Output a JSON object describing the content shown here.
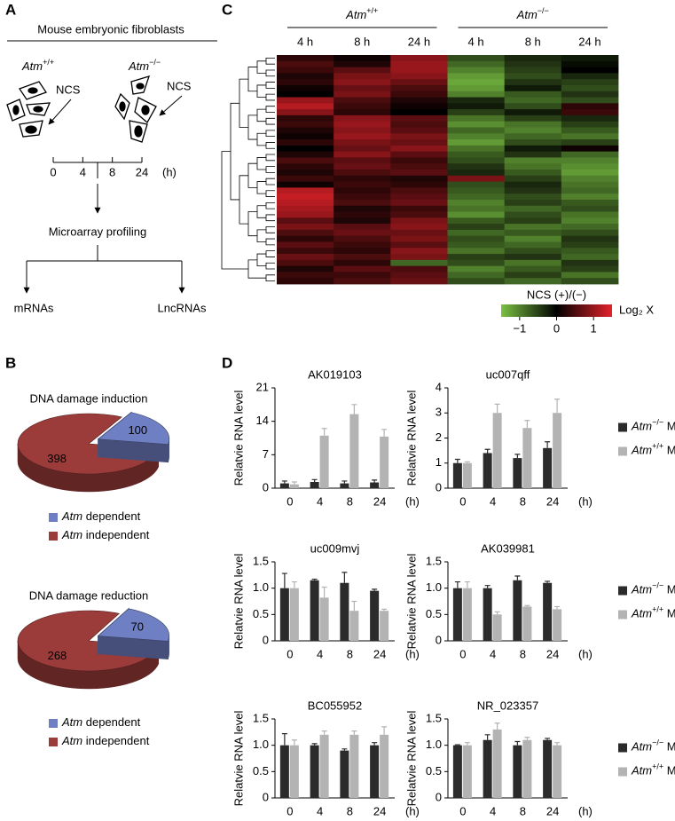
{
  "panel_labels": [
    "A",
    "B",
    "C",
    "D"
  ],
  "diagram": {
    "title": "Mouse embryonic fibroblasts",
    "groups": [
      {
        "label": "Atm+/+",
        "treatment": "NCS"
      },
      {
        "label": "Atm−/−",
        "treatment": "NCS"
      }
    ],
    "timepoints": [
      0,
      4,
      8,
      24
    ],
    "time_unit": "(h)",
    "step": "Microarray profiling",
    "outputs": [
      "mRNAs",
      "LncRNAs"
    ]
  },
  "chart_data": [
    {
      "type": "pie",
      "title": "DNA damage induction",
      "categories": [
        "Atm dependent",
        "Atm independent"
      ],
      "values": [
        100,
        398
      ],
      "colors": [
        "#6f7fc4",
        "#9c3c3a"
      ],
      "legend": "bottom"
    },
    {
      "type": "pie",
      "title": "DNA damage reduction",
      "categories": [
        "Atm dependent",
        "Atm independent"
      ],
      "values": [
        70,
        268
      ],
      "colors": [
        "#6f7fc4",
        "#9c3c3a"
      ],
      "legend": "bottom"
    },
    {
      "type": "heatmap",
      "column_groups": [
        "Atm+/+",
        "Atm−/−"
      ],
      "columns": [
        "4 h",
        "8 h",
        "24 h",
        "4 h",
        "8 h",
        "24 h"
      ],
      "values": [
        [
          0.3,
          0.1,
          0.9,
          -0.6,
          -0.3,
          -0.2
        ],
        [
          0.5,
          0.2,
          1.0,
          -0.8,
          -0.4,
          -0.1
        ],
        [
          0.4,
          0.6,
          1.0,
          -1.0,
          -0.5,
          0.0
        ],
        [
          0.2,
          0.8,
          0.9,
          -1.2,
          -0.6,
          -0.3
        ],
        [
          0.3,
          0.9,
          0.7,
          -1.3,
          -0.4,
          -0.5
        ],
        [
          0.1,
          0.7,
          0.5,
          -1.2,
          -0.2,
          -0.6
        ],
        [
          0.0,
          0.8,
          0.4,
          -1.0,
          -0.7,
          -0.4
        ],
        [
          1.0,
          0.5,
          0.2,
          -0.3,
          -0.8,
          -0.6
        ],
        [
          1.2,
          0.4,
          0.1,
          -0.2,
          -0.6,
          0.3
        ],
        [
          0.9,
          0.3,
          0.0,
          -0.5,
          -0.2,
          0.4
        ],
        [
          0.3,
          0.9,
          0.6,
          -0.9,
          -0.5,
          -0.3
        ],
        [
          0.4,
          1.0,
          0.5,
          -1.1,
          -0.9,
          -0.5
        ],
        [
          0.2,
          0.9,
          0.6,
          -0.8,
          -1.0,
          -0.7
        ],
        [
          0.1,
          1.0,
          0.8,
          -1.0,
          -0.8,
          -0.9
        ],
        [
          0.3,
          0.8,
          0.7,
          -1.2,
          -0.6,
          -0.5
        ],
        [
          0.0,
          0.7,
          0.9,
          -0.9,
          -0.2,
          0.1
        ],
        [
          0.2,
          0.9,
          0.6,
          -0.7,
          -0.4,
          -0.8
        ],
        [
          0.5,
          0.6,
          0.4,
          -0.6,
          -1.0,
          -1.0
        ],
        [
          0.3,
          0.7,
          0.5,
          -0.4,
          -0.9,
          -1.1
        ],
        [
          0.2,
          0.5,
          0.6,
          -0.3,
          -0.7,
          -1.2
        ],
        [
          0.4,
          0.3,
          0.2,
          0.8,
          -0.5,
          -1.0
        ],
        [
          0.1,
          0.4,
          0.3,
          -0.6,
          -0.3,
          -0.9
        ],
        [
          1.2,
          0.3,
          0.5,
          -0.7,
          -0.4,
          -0.8
        ],
        [
          1.3,
          0.4,
          0.6,
          -0.8,
          -0.6,
          -1.0
        ],
        [
          1.2,
          0.5,
          0.7,
          -1.0,
          -0.5,
          -0.7
        ],
        [
          1.1,
          0.2,
          0.4,
          -0.9,
          -0.8,
          -0.6
        ],
        [
          1.0,
          0.3,
          0.5,
          -1.1,
          -0.6,
          -0.9
        ],
        [
          0.6,
          0.2,
          0.8,
          -0.7,
          -0.5,
          -1.0
        ],
        [
          0.8,
          0.6,
          0.9,
          -0.5,
          -0.9,
          -0.8
        ],
        [
          0.5,
          0.7,
          0.7,
          -0.8,
          -0.7,
          -0.6
        ],
        [
          0.3,
          0.5,
          0.8,
          -0.6,
          -1.0,
          -0.4
        ],
        [
          0.6,
          0.4,
          0.6,
          -0.7,
          -0.8,
          -0.5
        ],
        [
          0.4,
          0.3,
          0.9,
          -0.9,
          -0.6,
          -0.7
        ],
        [
          0.7,
          0.5,
          0.8,
          -0.5,
          -0.4,
          -0.8
        ],
        [
          0.5,
          0.3,
          -0.8,
          -0.6,
          -0.9,
          -0.4
        ],
        [
          0.2,
          0.6,
          0.5,
          -1.0,
          -0.7,
          -0.5
        ],
        [
          0.4,
          0.4,
          0.6,
          -0.8,
          -0.5,
          -0.9
        ],
        [
          0.3,
          0.5,
          0.7,
          -0.6,
          -0.8,
          -0.6
        ]
      ],
      "colors": [
        "#7ac143",
        "#000000",
        "#e2232a"
      ],
      "colorbar": {
        "title": "NCS (+)/(−)",
        "label": "Log₂ X",
        "zlim": [
          -1.5,
          1.5
        ],
        "ticks": [
          {
            "value": -1,
            "label": "−1"
          },
          0,
          1
        ]
      }
    },
    {
      "type": "bar",
      "title": "AK019103",
      "ylabel": "Relatvie RNA level",
      "xlabel": "(h)",
      "categories": [
        "0",
        "4",
        "8",
        "24"
      ],
      "ylim": [
        0,
        21
      ],
      "yticks": [
        0,
        7,
        14,
        21
      ],
      "series": [
        {
          "name": "Atm−/− MEF",
          "color": "#2b2b2b",
          "values": [
            1,
            1.3,
            1,
            1.2
          ],
          "errors": [
            0.5,
            0.5,
            0.5,
            0.5
          ]
        },
        {
          "name": "Atm+/+ MEF",
          "color": "#b3b3b3",
          "values": [
            0.8,
            11,
            15.5,
            10.8
          ],
          "errors": [
            0.5,
            1.5,
            2,
            1.5
          ]
        }
      ]
    },
    {
      "type": "bar",
      "title": "uc007qff",
      "ylabel": "Relatvie RNA level",
      "xlabel": "(h)",
      "categories": [
        "0",
        "4",
        "8",
        "24"
      ],
      "ylim": [
        0,
        4
      ],
      "yticks": [
        0,
        1,
        2,
        3,
        4
      ],
      "legend": "right",
      "series": [
        {
          "name": "Atm−/− MEF",
          "color": "#2b2b2b",
          "values": [
            1,
            1.4,
            1.2,
            1.6
          ],
          "errors": [
            0.15,
            0.15,
            0.15,
            0.25
          ]
        },
        {
          "name": "Atm+/+ MEF",
          "color": "#b3b3b3",
          "values": [
            1,
            3,
            2.4,
            3
          ],
          "errors": [
            0.05,
            0.35,
            0.3,
            0.55
          ]
        }
      ]
    },
    {
      "type": "bar",
      "title": "uc009mvj",
      "ylabel": "Relatvie RNA level",
      "xlabel": "(h)",
      "categories": [
        "0",
        "4",
        "8",
        "24"
      ],
      "ylim": [
        0,
        1.5
      ],
      "yticks": [
        0,
        0.5,
        {
          "value": 1,
          "label": "1.0"
        },
        1.5
      ],
      "series": [
        {
          "name": "Atm−/− MEF",
          "color": "#2b2b2b",
          "values": [
            1,
            1.15,
            1.1,
            0.95
          ],
          "errors": [
            0.28,
            0.02,
            0.2,
            0.03
          ]
        },
        {
          "name": "Atm+/+ MEF",
          "color": "#b3b3b3",
          "values": [
            1,
            0.82,
            0.57,
            0.57
          ],
          "errors": [
            0.12,
            0.2,
            0.18,
            0.03
          ]
        }
      ]
    },
    {
      "type": "bar",
      "title": "AK039981",
      "ylabel": "Relatvie RNA level",
      "xlabel": "(h)",
      "categories": [
        "0",
        "4",
        "8",
        "24"
      ],
      "ylim": [
        0,
        1.5
      ],
      "yticks": [
        0,
        0.5,
        {
          "value": 1,
          "label": "1.0"
        },
        1.5
      ],
      "legend": "right",
      "series": [
        {
          "name": "Atm−/− MEF",
          "color": "#2b2b2b",
          "values": [
            1,
            1,
            1.15,
            1.1
          ],
          "errors": [
            0.12,
            0.05,
            0.08,
            0.03
          ]
        },
        {
          "name": "Atm+/+ MEF",
          "color": "#b3b3b3",
          "values": [
            1,
            0.5,
            0.65,
            0.6
          ],
          "errors": [
            0.12,
            0.05,
            0.02,
            0.05
          ]
        }
      ]
    },
    {
      "type": "bar",
      "title": "BC055952",
      "ylabel": "Relatvie RNA level",
      "xlabel": "(h)",
      "categories": [
        "0",
        "4",
        "8",
        "24"
      ],
      "ylim": [
        0,
        1.5
      ],
      "yticks": [
        0,
        0.5,
        {
          "value": 1,
          "label": "1.0"
        },
        1.5
      ],
      "series": [
        {
          "name": "Atm−/− MEF",
          "color": "#2b2b2b",
          "values": [
            1,
            1,
            0.9,
            1
          ],
          "errors": [
            0.22,
            0.03,
            0.03,
            0.05
          ]
        },
        {
          "name": "Atm+/+ MEF",
          "color": "#b3b3b3",
          "values": [
            1,
            1.2,
            1.2,
            1.2
          ],
          "errors": [
            0.1,
            0.07,
            0.07,
            0.15
          ]
        }
      ]
    },
    {
      "type": "bar",
      "title": "NR_023357",
      "ylabel": "Relatvie RNA level",
      "xlabel": "(h)",
      "categories": [
        "0",
        "4",
        "8",
        "24"
      ],
      "ylim": [
        0,
        1.5
      ],
      "yticks": [
        0,
        0.5,
        {
          "value": 1,
          "label": "1.0"
        },
        1.5
      ],
      "legend": "right",
      "series": [
        {
          "name": "Atm−/− MEF",
          "color": "#2b2b2b",
          "values": [
            1,
            1.1,
            1,
            1.1
          ],
          "errors": [
            0.01,
            0.1,
            0.07,
            0.03
          ]
        },
        {
          "name": "Atm+/+ MEF",
          "color": "#b3b3b3",
          "values": [
            1,
            1.3,
            1.1,
            1
          ],
          "errors": [
            0.05,
            0.12,
            0.05,
            0.05
          ]
        }
      ]
    }
  ]
}
